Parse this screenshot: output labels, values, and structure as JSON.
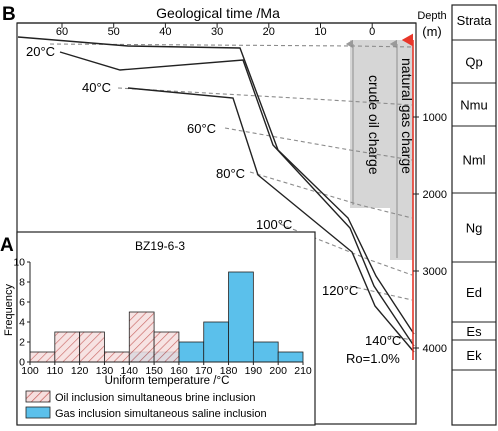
{
  "burial_chart": {
    "panel_label": "B",
    "xlabel": "Geological time /Ma",
    "x_ticks": [
      "60",
      "50",
      "40",
      "30",
      "20",
      "10",
      "0"
    ],
    "depth_header": "Depth",
    "depth_unit": "(m)",
    "depth_ticks": [
      "1000",
      "2000",
      "3000",
      "4000"
    ],
    "strata_header": "Strata",
    "strata": [
      "Qp",
      "Nmu",
      "Nml",
      "Ng",
      "Ed",
      "Es",
      "Ek"
    ],
    "isotherm_labels": [
      "20°C",
      "40°C",
      "60°C",
      "80°C",
      "100°C",
      "120°C",
      "140°C"
    ],
    "ro_label": "Ro=1.0%",
    "crude_oil_label": "crude oil charge",
    "gas_label": "natural gas charge",
    "colors": {
      "charge_band": "#d4d4d4",
      "depth_arrow": "#e8372a",
      "isotherm": "#8c8c8c"
    }
  },
  "chart_data": {
    "type": "bar",
    "panel_label": "A",
    "title": "BZ19-6-3",
    "xlabel": "Uniform temperature /°C",
    "ylabel": "Frequency",
    "x_ticks": [
      100,
      110,
      120,
      130,
      140,
      150,
      160,
      170,
      180,
      190,
      200,
      210
    ],
    "y_ticks": [
      0,
      2,
      4,
      6,
      8,
      10
    ],
    "xlim": [
      100,
      210
    ],
    "ylim": [
      0,
      10
    ],
    "bin_width": 10,
    "bin_starts": [
      100,
      110,
      120,
      130,
      140,
      150,
      160,
      170,
      180,
      190,
      200
    ],
    "series": [
      {
        "name": "Oil inclusion simultaneous brine inclusion",
        "fill": "hatch",
        "color": "#c0504d",
        "values": [
          1,
          3,
          3,
          1,
          5,
          3,
          0,
          0,
          0,
          0,
          0
        ]
      },
      {
        "name": "Gas inclusion simultaneous saline inclusion",
        "fill": "solid",
        "color": "#5bc0eb",
        "values": [
          0,
          0,
          0,
          0,
          1,
          1,
          2,
          4,
          9,
          2,
          1
        ]
      }
    ]
  }
}
